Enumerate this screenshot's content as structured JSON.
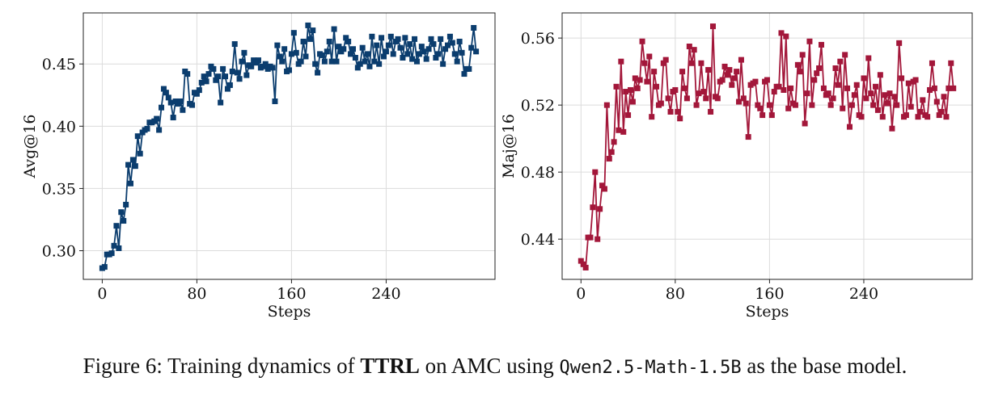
{
  "chart_data": [
    {
      "type": "line",
      "xlabel": "Steps",
      "ylabel": "Avg@16",
      "color": "#0b3d6e",
      "grid": true,
      "xlim": [
        -16,
        332
      ],
      "xticks": [
        0,
        80,
        160,
        240
      ],
      "ylim": [
        0.277,
        0.491
      ],
      "yticks": [
        {
          "value": 0.3,
          "label": "0.30"
        },
        0.35,
        {
          "value": 0.4,
          "label": "0.40"
        },
        0.45
      ],
      "x": [
        0,
        2,
        4,
        6,
        8,
        10,
        12,
        14,
        16,
        18,
        20,
        22,
        24,
        26,
        28,
        30,
        32,
        34,
        36,
        38,
        40,
        42,
        44,
        46,
        48,
        50,
        52,
        54,
        56,
        58,
        60,
        62,
        64,
        66,
        68,
        70,
        72,
        74,
        76,
        78,
        80,
        82,
        84,
        86,
        88,
        90,
        92,
        94,
        96,
        98,
        100,
        102,
        104,
        106,
        108,
        110,
        112,
        114,
        116,
        118,
        120,
        122,
        124,
        126,
        128,
        130,
        132,
        134,
        136,
        138,
        140,
        142,
        144,
        146,
        148,
        150,
        152,
        154,
        156,
        158,
        160,
        162,
        164,
        166,
        168,
        170,
        172,
        174,
        176,
        178,
        180,
        182,
        184,
        186,
        188,
        190,
        192,
        194,
        196,
        198,
        200,
        202,
        204,
        206,
        208,
        210,
        212,
        214,
        216,
        218,
        220,
        222,
        224,
        226,
        228,
        230,
        232,
        234,
        236,
        238,
        240,
        242,
        244,
        246,
        248,
        250,
        252,
        254,
        256,
        258,
        260,
        262,
        264,
        266,
        268,
        270,
        272,
        274,
        276,
        278,
        280,
        282,
        284,
        286,
        288,
        290,
        292,
        294,
        296,
        298,
        300,
        302,
        304,
        306,
        308,
        310,
        312,
        314,
        316
      ],
      "values": [
        0.286,
        0.287,
        0.297,
        0.297,
        0.298,
        0.304,
        0.32,
        0.302,
        0.331,
        0.324,
        0.337,
        0.369,
        0.354,
        0.373,
        0.368,
        0.392,
        0.378,
        0.395,
        0.397,
        0.398,
        0.403,
        0.403,
        0.404,
        0.406,
        0.397,
        0.415,
        0.43,
        0.427,
        0.423,
        0.419,
        0.407,
        0.42,
        0.418,
        0.42,
        0.413,
        0.444,
        0.442,
        0.418,
        0.417,
        0.427,
        0.426,
        0.429,
        0.435,
        0.44,
        0.436,
        0.442,
        0.448,
        0.446,
        0.437,
        0.44,
        0.419,
        0.446,
        0.44,
        0.43,
        0.433,
        0.444,
        0.466,
        0.443,
        0.438,
        0.452,
        0.459,
        0.441,
        0.449,
        0.448,
        0.453,
        0.451,
        0.453,
        0.447,
        0.448,
        0.45,
        0.446,
        0.448,
        0.447,
        0.42,
        0.465,
        0.456,
        0.452,
        0.462,
        0.444,
        0.445,
        0.458,
        0.475,
        0.459,
        0.45,
        0.452,
        0.468,
        0.456,
        0.481,
        0.47,
        0.477,
        0.45,
        0.443,
        0.458,
        0.457,
        0.452,
        0.46,
        0.468,
        0.452,
        0.478,
        0.452,
        0.464,
        0.46,
        0.462,
        0.471,
        0.468,
        0.458,
        0.462,
        0.455,
        0.447,
        0.45,
        0.463,
        0.452,
        0.458,
        0.448,
        0.472,
        0.452,
        0.465,
        0.45,
        0.471,
        0.456,
        0.46,
        0.465,
        0.472,
        0.458,
        0.468,
        0.47,
        0.463,
        0.455,
        0.471,
        0.458,
        0.466,
        0.454,
        0.47,
        0.452,
        0.458,
        0.464,
        0.46,
        0.454,
        0.462,
        0.47,
        0.466,
        0.455,
        0.458,
        0.47,
        0.45,
        0.462,
        0.465,
        0.472,
        0.467,
        0.458,
        0.452,
        0.468,
        0.459,
        0.442,
        0.446,
        0.446,
        0.463,
        0.479,
        0.46
      ]
    },
    {
      "type": "line",
      "xlabel": "Steps",
      "ylabel": "Maj@16",
      "color": "#a3173a",
      "grid": true,
      "xlim": [
        -16,
        332
      ],
      "xticks": [
        0,
        80,
        160,
        240
      ],
      "ylim": [
        0.416,
        0.575
      ],
      "yticks": [
        0.44,
        0.48,
        0.52,
        0.56
      ],
      "x": [
        0,
        2,
        4,
        6,
        8,
        10,
        12,
        14,
        16,
        18,
        20,
        22,
        24,
        26,
        28,
        30,
        32,
        34,
        36,
        38,
        40,
        42,
        44,
        46,
        48,
        50,
        52,
        54,
        56,
        58,
        60,
        62,
        64,
        66,
        68,
        70,
        72,
        74,
        76,
        78,
        80,
        82,
        84,
        86,
        88,
        90,
        92,
        94,
        96,
        98,
        100,
        102,
        104,
        106,
        108,
        110,
        112,
        114,
        116,
        118,
        120,
        122,
        124,
        126,
        128,
        130,
        132,
        134,
        136,
        138,
        140,
        142,
        144,
        146,
        148,
        150,
        152,
        154,
        156,
        158,
        160,
        162,
        164,
        166,
        168,
        170,
        172,
        174,
        176,
        178,
        180,
        182,
        184,
        186,
        188,
        190,
        192,
        194,
        196,
        198,
        200,
        202,
        204,
        206,
        208,
        210,
        212,
        214,
        216,
        218,
        220,
        222,
        224,
        226,
        228,
        230,
        232,
        234,
        236,
        238,
        240,
        242,
        244,
        246,
        248,
        250,
        252,
        254,
        256,
        258,
        260,
        262,
        264,
        266,
        268,
        270,
        272,
        274,
        276,
        278,
        280,
        282,
        284,
        286,
        288,
        290,
        292,
        294,
        296,
        298,
        300,
        302,
        304,
        306,
        308,
        310,
        312,
        314,
        316
      ],
      "values": [
        0.427,
        0.425,
        0.423,
        0.441,
        0.441,
        0.459,
        0.48,
        0.44,
        0.458,
        0.472,
        0.47,
        0.52,
        0.488,
        0.492,
        0.498,
        0.531,
        0.505,
        0.546,
        0.504,
        0.528,
        0.514,
        0.529,
        0.522,
        0.536,
        0.53,
        0.535,
        0.558,
        0.545,
        0.534,
        0.549,
        0.513,
        0.54,
        0.531,
        0.52,
        0.521,
        0.545,
        0.547,
        0.524,
        0.516,
        0.528,
        0.529,
        0.516,
        0.512,
        0.54,
        0.53,
        0.524,
        0.555,
        0.545,
        0.553,
        0.52,
        0.527,
        0.545,
        0.528,
        0.524,
        0.541,
        0.516,
        0.567,
        0.525,
        0.524,
        0.534,
        0.535,
        0.543,
        0.538,
        0.541,
        0.532,
        0.536,
        0.54,
        0.522,
        0.547,
        0.524,
        0.521,
        0.501,
        0.532,
        0.533,
        0.534,
        0.52,
        0.518,
        0.514,
        0.534,
        0.535,
        0.52,
        0.514,
        0.528,
        0.531,
        0.531,
        0.563,
        0.529,
        0.561,
        0.518,
        0.53,
        0.521,
        0.52,
        0.544,
        0.54,
        0.55,
        0.509,
        0.527,
        0.558,
        0.52,
        0.535,
        0.539,
        0.542,
        0.556,
        0.53,
        0.526,
        0.527,
        0.52,
        0.524,
        0.542,
        0.532,
        0.546,
        0.518,
        0.55,
        0.53,
        0.507,
        0.52,
        0.526,
        0.532,
        0.514,
        0.513,
        0.536,
        0.524,
        0.548,
        0.527,
        0.52,
        0.531,
        0.517,
        0.538,
        0.513,
        0.526,
        0.521,
        0.527,
        0.506,
        0.525,
        0.52,
        0.557,
        0.536,
        0.513,
        0.514,
        0.533,
        0.519,
        0.534,
        0.535,
        0.513,
        0.516,
        0.523,
        0.514,
        0.513,
        0.529,
        0.545,
        0.53,
        0.522,
        0.514,
        0.516,
        0.525,
        0.513,
        0.53,
        0.545,
        0.53
      ]
    }
  ],
  "caption": {
    "prefix": "Figure 6: Training dynamics of ",
    "bold": "TTRL",
    "middle": " on AMC using ",
    "code": "Qwen2.5-Math-1.5B",
    "suffix": " as the base model."
  }
}
